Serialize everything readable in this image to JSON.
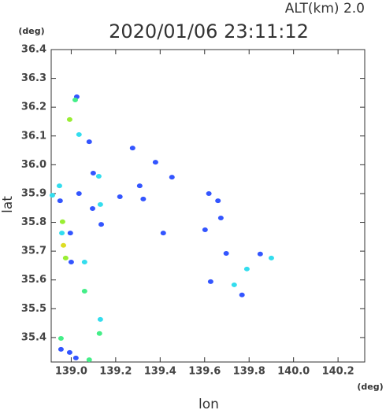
{
  "chart_data": {
    "type": "scatter",
    "title": "2020/01/06 23:11:12",
    "subtitle": "ALT(km) 2.0",
    "x_label": "lon",
    "y_label": "lat",
    "x_unit": "(deg)",
    "y_unit": "(deg)",
    "x": [
      139.025,
      139.018,
      138.993,
      139.035,
      139.081,
      139.276,
      139.379,
      139.099,
      139.124,
      138.947,
      139.308,
      139.453,
      138.915,
      138.95,
      139.035,
      139.219,
      139.324,
      139.131,
      139.096,
      139.619,
      139.66,
      139.673,
      138.961,
      139.135,
      138.958,
      138.996,
      139.414,
      139.602,
      139.697,
      138.965,
      138.975,
      139.0,
      139.06,
      139.85,
      139.9,
      139.79,
      139.733,
      139.627,
      139.768,
      139.06,
      139.131,
      139.127,
      138.954,
      138.993,
      139.021,
      139.081,
      138.954
    ],
    "values": [
      36.236,
      36.225,
      36.157,
      36.105,
      36.08,
      36.058,
      36.009,
      35.971,
      35.96,
      35.927,
      35.927,
      35.957,
      35.894,
      35.875,
      35.9,
      35.889,
      35.881,
      35.862,
      35.848,
      35.9,
      35.875,
      35.815,
      35.802,
      35.793,
      35.763,
      35.763,
      35.763,
      35.774,
      35.692,
      35.72,
      35.676,
      35.662,
      35.662,
      35.69,
      35.676,
      35.638,
      35.583,
      35.594,
      35.548,
      35.561,
      35.463,
      35.414,
      35.397,
      35.348,
      35.329,
      35.323,
      35.359
    ],
    "colors": [
      "#3355ff",
      "#44ee88",
      "#99ee33",
      "#33ddee",
      "#3355ff",
      "#3355ff",
      "#3355ff",
      "#3355ff",
      "#33ddee",
      "#33ddee",
      "#3355ff",
      "#3355ff",
      "#33ddee",
      "#3355ff",
      "#3355ff",
      "#3355ff",
      "#3355ff",
      "#33ddee",
      "#3355ff",
      "#3355ff",
      "#3355ff",
      "#3355ff",
      "#99ee33",
      "#3355ff",
      "#33ddee",
      "#3355ff",
      "#3355ff",
      "#3355ff",
      "#3355ff",
      "#dddd22",
      "#99ee33",
      "#3355ff",
      "#33ddee",
      "#3355ff",
      "#33ddee",
      "#33ddee",
      "#33ddee",
      "#3355ff",
      "#3355ff",
      "#44ee88",
      "#33ddee",
      "#44ee88",
      "#44ee88",
      "#3355ff",
      "#3355ff",
      "#44ee88",
      "#3355ff"
    ],
    "xlim": [
      138.91,
      140.32
    ],
    "ylim": [
      35.315,
      36.4
    ],
    "xticks": [
      {
        "value": 139.0,
        "label": "139.0"
      },
      139.2,
      139.4,
      139.6,
      139.8,
      {
        "value": 140.0,
        "label": "140.0"
      },
      140.2
    ],
    "yticks": [
      35.4,
      35.5,
      35.6,
      35.7,
      35.8,
      35.9,
      {
        "value": 36.0,
        "label": "36.0"
      },
      36.1,
      36.2,
      36.3,
      36.4
    ]
  }
}
